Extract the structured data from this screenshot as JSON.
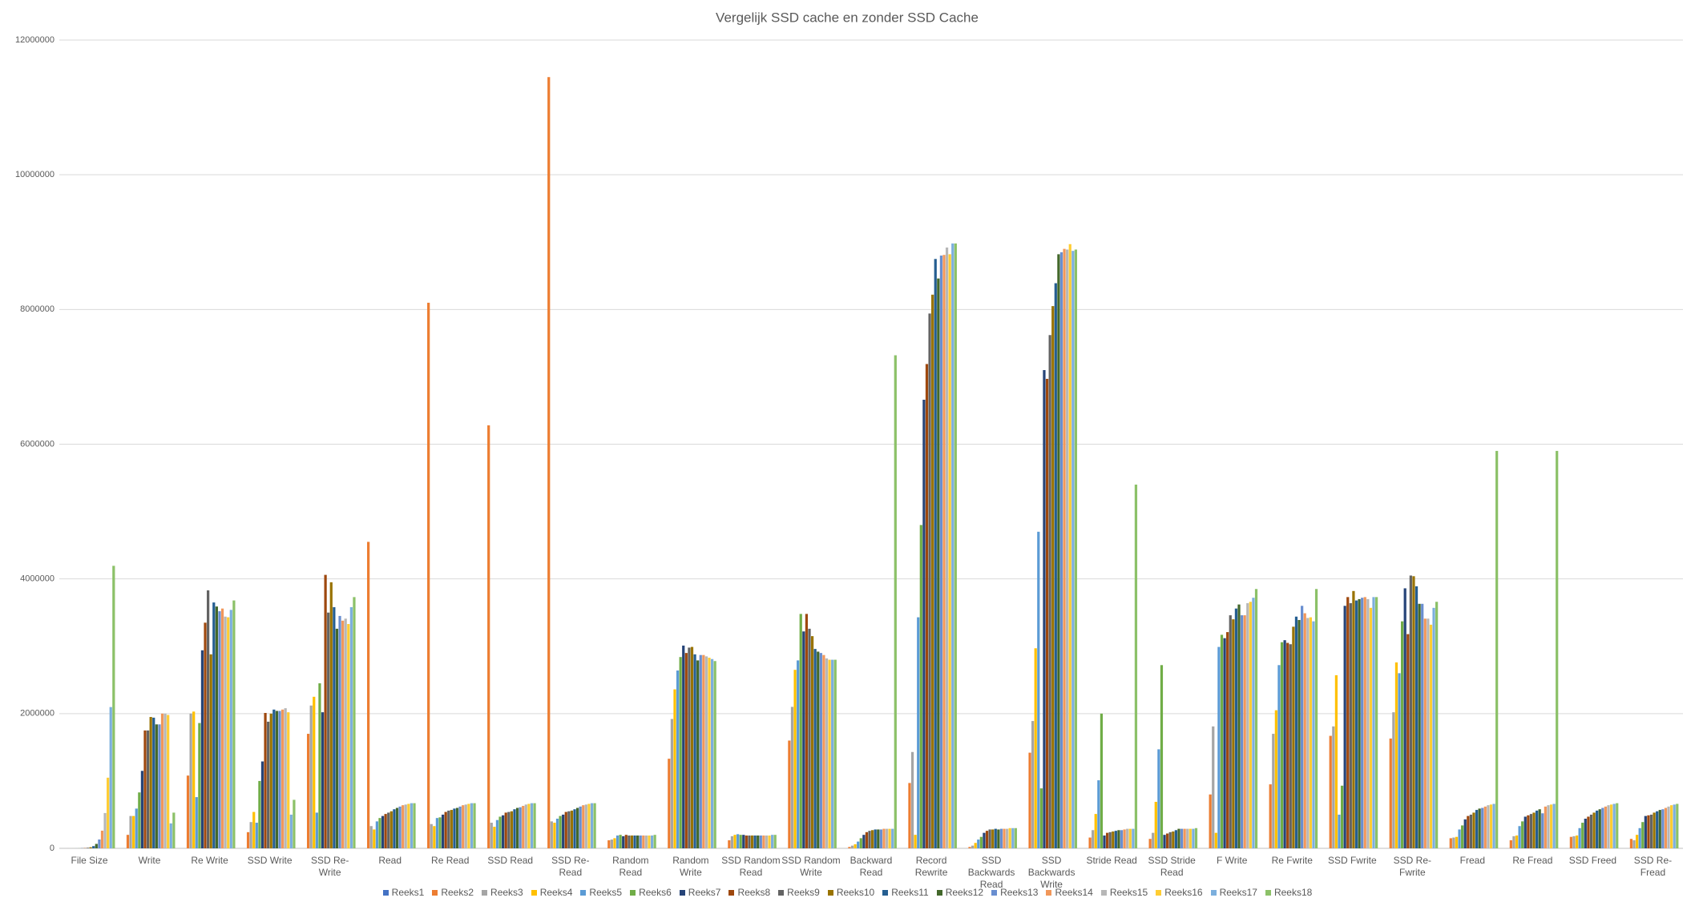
{
  "chart_data": {
    "type": "bar",
    "title": "Vergelijk SSD cache en zonder SSD Cache",
    "categories": [
      "File Size",
      "Write",
      "Re Write",
      "SSD Write",
      "SSD Re-Write",
      "Read",
      "Re Read",
      "SSD Read",
      "SSD Re-Read",
      "Random Read",
      "Random Write",
      "SSD Random Read",
      "SSD Random Write",
      "Backward Read",
      "Record Rewrite",
      "SSD Backwards Read",
      "SSD Backwards Write",
      "Stride Read",
      "SSD Stride Read",
      "F Write",
      "Re Fwrite",
      "SSD Fwrite",
      "SSD Re-Fwrite",
      "Fread",
      "Re Fread",
      "SSD Freed",
      "SSD Re-Fread"
    ],
    "ylim": [
      0,
      12000000
    ],
    "yticks": [
      0,
      2000000,
      4000000,
      6000000,
      8000000,
      10000000,
      12000000
    ],
    "grid": true,
    "legend": "bottom",
    "series": [
      {
        "name": "Reeks1",
        "color": "#4472c4",
        "values": [
          32,
          0,
          0,
          0,
          0,
          0,
          0,
          0,
          0,
          0,
          0,
          0,
          0,
          0,
          0,
          0,
          0,
          0,
          0,
          0,
          0,
          0,
          0,
          0,
          0,
          0,
          0
        ]
      },
      {
        "name": "Reeks2",
        "color": "#ed7d31",
        "values": [
          64,
          200000,
          1080000,
          240000,
          1700000,
          4550000,
          8100000,
          6280000,
          11450000,
          120000,
          1330000,
          120000,
          1600000,
          20000,
          970000,
          20000,
          1420000,
          160000,
          140000,
          800000,
          950000,
          1670000,
          1630000,
          150000,
          120000,
          170000,
          140000
        ]
      },
      {
        "name": "Reeks3",
        "color": "#a5a5a5",
        "values": [
          128,
          480000,
          2000000,
          390000,
          2120000,
          330000,
          360000,
          380000,
          400000,
          130000,
          1920000,
          180000,
          2100000,
          40000,
          1430000,
          40000,
          1890000,
          270000,
          230000,
          1810000,
          1700000,
          1810000,
          2020000,
          160000,
          180000,
          180000,
          120000
        ]
      },
      {
        "name": "Reeks4",
        "color": "#ffc000",
        "values": [
          256,
          480000,
          2030000,
          540000,
          2250000,
          280000,
          330000,
          320000,
          380000,
          150000,
          2360000,
          200000,
          2650000,
          60000,
          200000,
          80000,
          2970000,
          510000,
          690000,
          230000,
          2050000,
          2570000,
          2760000,
          170000,
          190000,
          190000,
          200000
        ]
      },
      {
        "name": "Reeks5",
        "color": "#5b9bd5",
        "values": [
          512,
          590000,
          760000,
          380000,
          530000,
          400000,
          450000,
          420000,
          440000,
          190000,
          2640000,
          210000,
          2790000,
          100000,
          3430000,
          130000,
          4700000,
          1010000,
          1470000,
          2990000,
          2720000,
          500000,
          2600000,
          280000,
          330000,
          300000,
          300000
        ]
      },
      {
        "name": "Reeks6",
        "color": "#70ad47",
        "values": [
          1024,
          830000,
          1860000,
          1000000,
          2450000,
          450000,
          460000,
          470000,
          480000,
          200000,
          2840000,
          200000,
          3480000,
          150000,
          4800000,
          170000,
          890000,
          2000000,
          2720000,
          3170000,
          3060000,
          930000,
          3370000,
          340000,
          400000,
          380000,
          390000
        ]
      },
      {
        "name": "Reeks7",
        "color": "#264478",
        "values": [
          2048,
          1150000,
          2940000,
          1290000,
          2020000,
          480000,
          500000,
          490000,
          500000,
          180000,
          3010000,
          200000,
          3220000,
          200000,
          6660000,
          230000,
          7100000,
          190000,
          200000,
          3120000,
          3090000,
          3600000,
          3860000,
          430000,
          470000,
          440000,
          480000
        ]
      },
      {
        "name": "Reeks8",
        "color": "#9e480e",
        "values": [
          4096,
          1750000,
          3350000,
          2010000,
          4060000,
          510000,
          540000,
          530000,
          540000,
          200000,
          2900000,
          190000,
          3480000,
          240000,
          7190000,
          260000,
          6970000,
          230000,
          220000,
          3210000,
          3050000,
          3730000,
          3180000,
          480000,
          490000,
          470000,
          490000
        ]
      },
      {
        "name": "Reeks9",
        "color": "#636363",
        "values": [
          8192,
          1750000,
          3830000,
          1880000,
          3500000,
          530000,
          560000,
          540000,
          550000,
          190000,
          2980000,
          190000,
          3260000,
          260000,
          7940000,
          280000,
          7620000,
          240000,
          240000,
          3460000,
          3030000,
          3640000,
          4050000,
          500000,
          510000,
          500000,
          500000
        ]
      },
      {
        "name": "Reeks10",
        "color": "#997300",
        "values": [
          16384,
          1950000,
          2880000,
          2000000,
          3950000,
          550000,
          570000,
          550000,
          560000,
          190000,
          2990000,
          190000,
          3150000,
          270000,
          8220000,
          280000,
          8050000,
          250000,
          250000,
          3400000,
          3290000,
          3820000,
          4040000,
          530000,
          530000,
          530000,
          530000
        ]
      },
      {
        "name": "Reeks11",
        "color": "#255e91",
        "values": [
          32768,
          1940000,
          3650000,
          2060000,
          3580000,
          580000,
          590000,
          580000,
          580000,
          190000,
          2880000,
          190000,
          2960000,
          280000,
          8750000,
          290000,
          8390000,
          260000,
          270000,
          3560000,
          3440000,
          3680000,
          3890000,
          570000,
          560000,
          560000,
          550000
        ]
      },
      {
        "name": "Reeks12",
        "color": "#43682b",
        "values": [
          65536,
          1840000,
          3590000,
          2040000,
          3260000,
          600000,
          600000,
          600000,
          600000,
          190000,
          2790000,
          190000,
          2920000,
          280000,
          8460000,
          280000,
          8820000,
          270000,
          290000,
          3620000,
          3390000,
          3700000,
          3630000,
          590000,
          580000,
          580000,
          570000
        ]
      },
      {
        "name": "Reeks13",
        "color": "#698ed0",
        "values": [
          131072,
          1840000,
          3520000,
          2040000,
          3450000,
          620000,
          620000,
          610000,
          620000,
          190000,
          2870000,
          190000,
          2900000,
          280000,
          8800000,
          290000,
          8850000,
          270000,
          290000,
          3460000,
          3600000,
          3720000,
          3630000,
          600000,
          520000,
          600000,
          580000
        ]
      },
      {
        "name": "Reeks14",
        "color": "#f1975a",
        "values": [
          262144,
          2000000,
          3560000,
          2060000,
          3380000,
          640000,
          640000,
          630000,
          640000,
          190000,
          2870000,
          190000,
          2870000,
          290000,
          8810000,
          290000,
          8900000,
          280000,
          290000,
          3460000,
          3490000,
          3730000,
          3410000,
          620000,
          620000,
          620000,
          600000
        ]
      },
      {
        "name": "Reeks15",
        "color": "#b7b7b7",
        "values": [
          524288,
          2000000,
          3440000,
          2080000,
          3410000,
          650000,
          650000,
          650000,
          650000,
          190000,
          2850000,
          190000,
          2820000,
          290000,
          8920000,
          290000,
          8890000,
          290000,
          290000,
          3640000,
          3420000,
          3700000,
          3410000,
          640000,
          640000,
          640000,
          620000
        ]
      },
      {
        "name": "Reeks16",
        "color": "#ffcd33",
        "values": [
          1048576,
          1980000,
          3430000,
          2020000,
          3330000,
          660000,
          660000,
          660000,
          660000,
          190000,
          2830000,
          190000,
          2800000,
          290000,
          8820000,
          300000,
          8970000,
          290000,
          290000,
          3660000,
          3430000,
          3570000,
          3320000,
          650000,
          650000,
          650000,
          640000
        ]
      },
      {
        "name": "Reeks17",
        "color": "#7cafdd",
        "values": [
          2097152,
          370000,
          3540000,
          500000,
          3580000,
          670000,
          670000,
          670000,
          670000,
          190000,
          2810000,
          200000,
          2800000,
          290000,
          8980000,
          300000,
          8870000,
          290000,
          290000,
          3720000,
          3370000,
          3730000,
          3570000,
          660000,
          660000,
          660000,
          650000
        ]
      },
      {
        "name": "Reeks18",
        "color": "#8cc168",
        "values": [
          4194304,
          530000,
          3680000,
          720000,
          3730000,
          670000,
          670000,
          670000,
          670000,
          200000,
          2780000,
          200000,
          2800000,
          7320000,
          8980000,
          300000,
          8890000,
          5400000,
          300000,
          3850000,
          3850000,
          3730000,
          3660000,
          5900000,
          5900000,
          670000,
          660000
        ]
      }
    ]
  }
}
